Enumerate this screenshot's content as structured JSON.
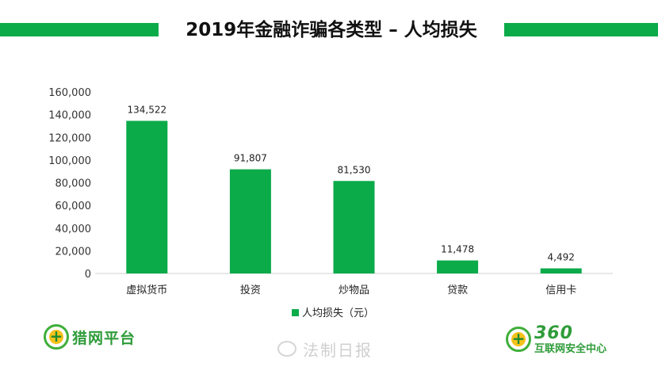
{
  "title": "2019年金融诈骗各类型 – 人均损失",
  "colors": {
    "accent": "#0bab4a",
    "bar": "#0bab4a"
  },
  "chart_data": {
    "type": "bar",
    "title": "2019年金融诈骗各类型 – 人均损失",
    "categories": [
      "虚拟货币",
      "投资",
      "炒物品",
      "贷款",
      "信用卡"
    ],
    "series": [
      {
        "name": "人均损失（元）",
        "values": [
          134522,
          91807,
          81530,
          11478,
          4492
        ]
      }
    ],
    "data_labels": [
      "134,522",
      "91,807",
      "81,530",
      "11,478",
      "4,492"
    ],
    "ylim": [
      0,
      160000
    ],
    "yticks": [
      "0",
      "20,000",
      "40,000",
      "60,000",
      "80,000",
      "100,000",
      "120,000",
      "140,000",
      "160,000"
    ],
    "xlabel": "",
    "ylabel": "",
    "grid": false,
    "legend": "bottom"
  },
  "logos": {
    "left_text": "猎网平台",
    "right_big": "360",
    "right_small": "互联网安全中心"
  },
  "watermark": "法制日报"
}
